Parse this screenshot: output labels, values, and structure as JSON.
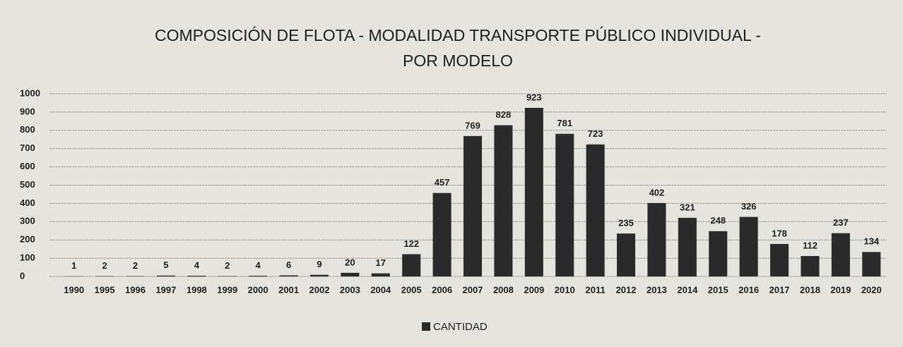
{
  "chart_data": {
    "type": "bar",
    "title": [
      "COMPOSICIÓN DE FLOTA - MODALIDAD TRANSPORTE PÚBLICO INDIVIDUAL -",
      "POR MODELO"
    ],
    "categories": [
      "1990",
      "1995",
      "1996",
      "1997",
      "1998",
      "1999",
      "2000",
      "2001",
      "2002",
      "2003",
      "2004",
      "2005",
      "2006",
      "2007",
      "2008",
      "2009",
      "2010",
      "2011",
      "2012",
      "2013",
      "2014",
      "2015",
      "2016",
      "2017",
      "2018",
      "2019",
      "2020"
    ],
    "series": [
      {
        "name": "CANTIDAD",
        "color": "#2a2a2a",
        "values": [
          1,
          2,
          2,
          5,
          4,
          2,
          4,
          6,
          9,
          20,
          17,
          122,
          457,
          769,
          828,
          923,
          781,
          723,
          235,
          402,
          321,
          248,
          326,
          178,
          112,
          237,
          134
        ]
      }
    ],
    "ylim": [
      0,
      1000
    ],
    "yticks": [
      0,
      100,
      200,
      300,
      400,
      500,
      600,
      700,
      800,
      900,
      1000
    ],
    "grid": true,
    "legend": "bottom"
  }
}
